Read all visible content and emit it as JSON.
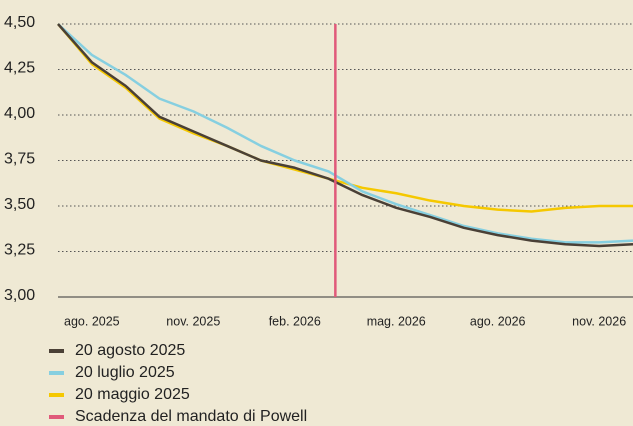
{
  "chart_data": {
    "type": "line",
    "categories": [
      null,
      "ago. 2025",
      null,
      null,
      "nov. 2025",
      null,
      null,
      "feb. 2026",
      null,
      null,
      "mag. 2026",
      null,
      null,
      "ago. 2026",
      null,
      null,
      "nov. 2026",
      null
    ],
    "series": [
      {
        "name": "20 agosto 2025",
        "color": "#4a4036",
        "values": [
          4.5,
          4.29,
          4.16,
          3.99,
          3.91,
          3.83,
          3.75,
          3.71,
          3.65,
          3.56,
          3.49,
          3.44,
          3.38,
          3.34,
          3.31,
          3.29,
          3.28,
          3.29
        ]
      },
      {
        "name": "20 luglio 2025",
        "color": "#86cfe0",
        "values": [
          4.5,
          4.33,
          4.22,
          4.09,
          4.02,
          3.93,
          3.83,
          3.75,
          3.69,
          3.58,
          3.51,
          3.45,
          3.39,
          3.35,
          3.32,
          3.3,
          3.3,
          3.31
        ]
      },
      {
        "name": "20 maggio 2025",
        "color": "#f5c800",
        "values": [
          4.5,
          4.28,
          4.15,
          3.98,
          3.9,
          3.83,
          3.75,
          3.7,
          3.65,
          3.6,
          3.57,
          3.53,
          3.5,
          3.48,
          3.47,
          3.49,
          3.5,
          3.5
        ]
      }
    ],
    "vline": {
      "name": "Scadenza del mandato di Powell",
      "color": "#e05a7a",
      "x": 8.2
    },
    "ylim": [
      3.0,
      4.5
    ],
    "yticks": [
      {
        "value": 3.0,
        "label": "3,00"
      },
      {
        "value": 3.25,
        "label": "3,25"
      },
      {
        "value": 3.5,
        "label": "3,50"
      },
      {
        "value": 3.75,
        "label": "3,75"
      },
      {
        "value": 4.0,
        "label": "4,00"
      },
      {
        "value": 4.25,
        "label": "4,25"
      },
      {
        "value": 4.5,
        "label": "4,50"
      }
    ],
    "grid": true
  }
}
